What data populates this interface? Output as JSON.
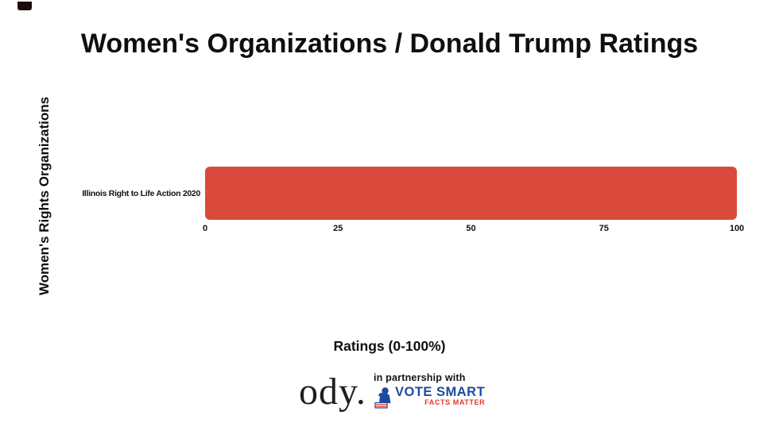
{
  "page": {
    "background": "#ffffff",
    "corner_mark_color": "#1c0d0d",
    "text_color": "#0f0f0f"
  },
  "chart_data": {
    "type": "bar",
    "orientation": "horizontal",
    "title": "Women's Organizations / Donald Trump Ratings",
    "ylabel": "Women's Rights Organizations",
    "xlabel": "Ratings (0-100%)",
    "categories": [
      "Illinois Right to Life Action 2020"
    ],
    "values": [
      100
    ],
    "xlim": [
      0,
      100
    ],
    "xticks": [
      0,
      25,
      50,
      75,
      100
    ],
    "bar_color": "#d94a3c",
    "grid": false,
    "legend": false
  },
  "footer": {
    "brand": "ody.",
    "partnership_text": "in partnership with",
    "votesmart": {
      "line1": "VOTE SMART",
      "line2": "FACTS MATTER",
      "blue": "#1d4b9e",
      "red": "#e03a2f"
    }
  }
}
